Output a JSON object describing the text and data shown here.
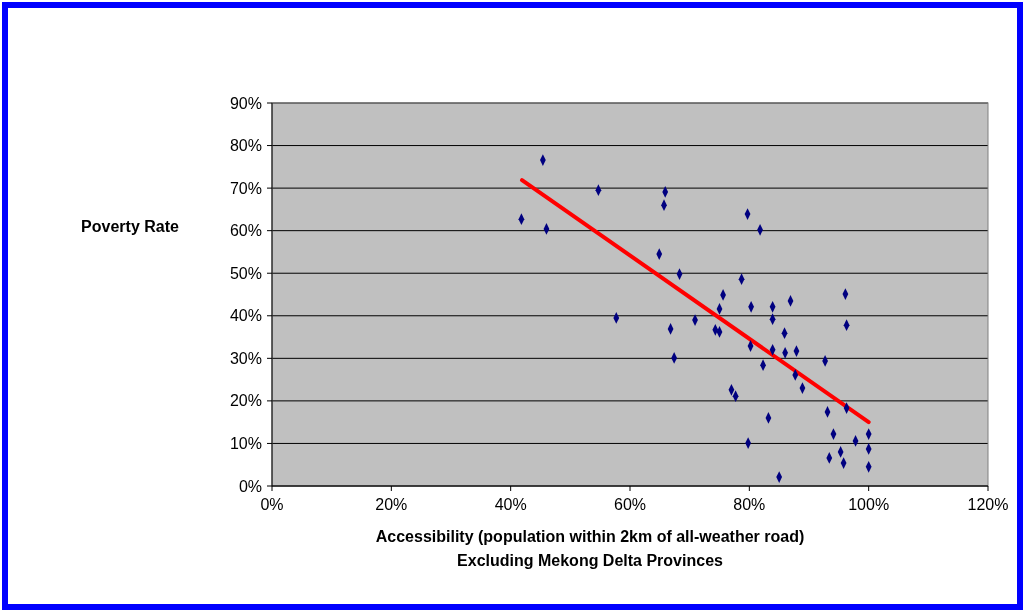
{
  "chart_data": {
    "type": "scatter",
    "xlabel": "Accessibility (population within 2km of all-weather road)\nExcluding Mekong Delta Provinces",
    "ylabel": "Poverty Rate",
    "grid": "y",
    "xlim": [
      0,
      120
    ],
    "ylim": [
      0,
      90
    ],
    "xticks": [
      {
        "value": 0,
        "label": "0%"
      },
      {
        "value": 20,
        "label": "20%"
      },
      {
        "value": 40,
        "label": "40%"
      },
      {
        "value": 60,
        "label": "60%"
      },
      {
        "value": 80,
        "label": "80%"
      },
      {
        "value": 100,
        "label": "100%"
      },
      {
        "value": 120,
        "label": "120%"
      }
    ],
    "yticks": [
      {
        "value": 0,
        "label": "0%"
      },
      {
        "value": 10,
        "label": "10%"
      },
      {
        "value": 20,
        "label": "20%"
      },
      {
        "value": 30,
        "label": "30%"
      },
      {
        "value": 40,
        "label": "40%"
      },
      {
        "value": 50,
        "label": "50%"
      },
      {
        "value": 60,
        "label": "60%"
      },
      {
        "value": 70,
        "label": "70%"
      },
      {
        "value": 80,
        "label": "80%"
      },
      {
        "value": 90,
        "label": "90%"
      }
    ],
    "series": [
      {
        "marker": "diamond",
        "color": "#000080",
        "x": [
          41.8,
          45.4,
          46.0,
          54.7,
          57.7,
          64.9,
          65.7,
          65.9,
          66.8,
          67.4,
          68.3,
          70.9,
          74.3,
          75.0,
          75.0,
          75.6,
          77.0,
          77.7,
          78.7,
          79.7,
          79.8,
          80.2,
          80.3,
          81.8,
          82.3,
          83.2,
          83.9,
          83.9,
          83.9,
          85.0,
          85.9,
          86.0,
          86.9,
          87.7,
          87.9,
          88.9,
          92.7,
          93.1,
          93.4,
          94.1,
          95.3,
          95.8,
          96.1,
          96.3,
          96.3,
          97.8,
          100,
          100,
          100
        ],
        "values": [
          62.7,
          76.6,
          60.4,
          69.5,
          39.5,
          54.5,
          66.0,
          69.1,
          36.9,
          30.1,
          49.8,
          39.0,
          36.7,
          36.2,
          41.6,
          44.9,
          22.6,
          21.1,
          48.6,
          63.9,
          10.1,
          32.9,
          42.1,
          60.2,
          28.4,
          16.0,
          42.1,
          39.2,
          32.0,
          2.1,
          35.9,
          31.3,
          43.5,
          26.1,
          31.7,
          23.0,
          29.4,
          17.4,
          6.6,
          12.2,
          8.0,
          5.4,
          45.1,
          37.8,
          18.3,
          10.6,
          12.2,
          8.7,
          4.5
        ]
      },
      {
        "type": "line",
        "marker": "none",
        "color": "#ff0000",
        "x": [
          41.9,
          100
        ],
        "values": [
          71.9,
          15.0
        ]
      }
    ]
  }
}
